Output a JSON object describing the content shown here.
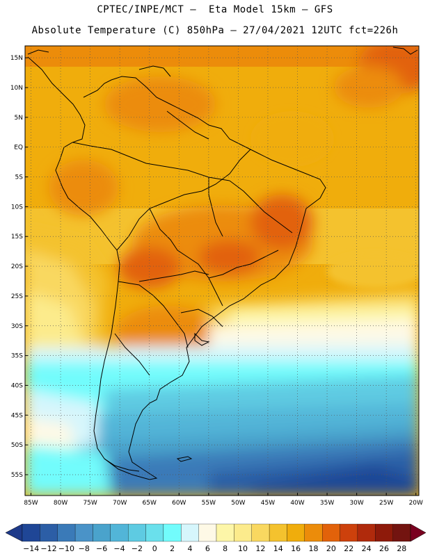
{
  "header": {
    "line1": "CPTEC/INPE/MCT –  Eta Model 15km – GFS",
    "line2": "Absolute Temperature (C) 850hPa – 27/04/2021 12UTC fct=226h"
  },
  "map": {
    "lat_labels": [
      {
        "label": "15N",
        "lat": 15
      },
      {
        "label": "10N",
        "lat": 10
      },
      {
        "label": "5N",
        "lat": 5
      },
      {
        "label": "EQ",
        "lat": 0
      },
      {
        "label": "5S",
        "lat": -5
      },
      {
        "label": "10S",
        "lat": -10
      },
      {
        "label": "15S",
        "lat": -15
      },
      {
        "label": "20S",
        "lat": -20
      },
      {
        "label": "25S",
        "lat": -25
      },
      {
        "label": "30S",
        "lat": -30
      },
      {
        "label": "35S",
        "lat": -35
      },
      {
        "label": "40S",
        "lat": -40
      },
      {
        "label": "45S",
        "lat": -45
      },
      {
        "label": "50S",
        "lat": -50
      },
      {
        "label": "55S",
        "lat": -55
      }
    ],
    "lon_labels": [
      {
        "label": "85W",
        "lon": -85
      },
      {
        "label": "80W",
        "lon": -80
      },
      {
        "label": "75W",
        "lon": -75
      },
      {
        "label": "70W",
        "lon": -70
      },
      {
        "label": "65W",
        "lon": -65
      },
      {
        "label": "60W",
        "lon": -60
      },
      {
        "label": "55W",
        "lon": -55
      },
      {
        "label": "50W",
        "lon": -50
      },
      {
        "label": "45W",
        "lon": -45
      },
      {
        "label": "40W",
        "lon": -40
      },
      {
        "label": "35W",
        "lon": -35
      },
      {
        "label": "30W",
        "lon": -30
      },
      {
        "label": "25W",
        "lon": -25
      },
      {
        "label": "20W",
        "lon": -20
      }
    ],
    "extent": {
      "lon_min": -86,
      "lon_max": -19.5,
      "lat_min": -58.5,
      "lat_max": 17
    }
  },
  "colorbar": {
    "labels": [
      "-14",
      "-12",
      "-10",
      "-8",
      "-6",
      "-4",
      "-2",
      "0",
      "2",
      "4",
      "6",
      "8",
      "10",
      "12",
      "14",
      "16",
      "18",
      "20",
      "22",
      "24",
      "26",
      "28"
    ],
    "colors": [
      "#1f4696",
      "#2c5ea6",
      "#3a7ab8",
      "#4a93c8",
      "#4aa3cc",
      "#52b5d8",
      "#5ecbe2",
      "#6ae0ec",
      "#72fcfc",
      "#d6f6fc",
      "#fef9e6",
      "#fdf6a8",
      "#fceb8c",
      "#f9d860",
      "#f4c22e",
      "#f0ad0c",
      "#ec8c0a",
      "#e2620a",
      "#cd410c",
      "#b02a0c",
      "#8e1a0a",
      "#731410"
    ],
    "left_arrow_color": "#1e3a8a",
    "right_arrow_color": "#7a0020"
  }
}
